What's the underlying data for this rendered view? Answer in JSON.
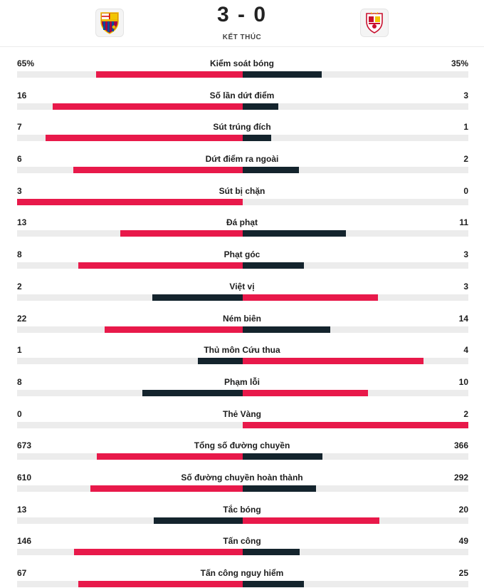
{
  "match": {
    "score": "3 - 0",
    "status": "KẾT THÚC",
    "home_crest": "fc-barcelona-crest",
    "away_crest": "sevilla-fc-crest"
  },
  "colors": {
    "leader": "#e8194a",
    "trailer": "#14242d",
    "track": "#ececec"
  },
  "stats": [
    {
      "label": "Kiểm soát bóng",
      "home": "65%",
      "away": "35%",
      "home_val": 65,
      "away_val": 35,
      "home_share": 0.65,
      "away_share": 0.35
    },
    {
      "label": "Số lần dứt điểm",
      "home": "16",
      "away": "3",
      "home_val": 16,
      "away_val": 3
    },
    {
      "label": "Sút trúng đích",
      "home": "7",
      "away": "1",
      "home_val": 7,
      "away_val": 1
    },
    {
      "label": "Dứt điểm ra ngoài",
      "home": "6",
      "away": "2",
      "home_val": 6,
      "away_val": 2
    },
    {
      "label": "Sút bị chặn",
      "home": "3",
      "away": "0",
      "home_val": 3,
      "away_val": 0
    },
    {
      "label": "Đá phạt",
      "home": "13",
      "away": "11",
      "home_val": 13,
      "away_val": 11
    },
    {
      "label": "Phạt góc",
      "home": "8",
      "away": "3",
      "home_val": 8,
      "away_val": 3
    },
    {
      "label": "Việt vị",
      "home": "2",
      "away": "3",
      "home_val": 2,
      "away_val": 3
    },
    {
      "label": "Ném biên",
      "home": "22",
      "away": "14",
      "home_val": 22,
      "away_val": 14
    },
    {
      "label": "Thủ môn Cứu thua",
      "home": "1",
      "away": "4",
      "home_val": 1,
      "away_val": 4
    },
    {
      "label": "Phạm lỗi",
      "home": "8",
      "away": "10",
      "home_val": 8,
      "away_val": 10
    },
    {
      "label": "Thẻ Vàng",
      "home": "0",
      "away": "2",
      "home_val": 0,
      "away_val": 2
    },
    {
      "label": "Tổng số đường chuyền",
      "home": "673",
      "away": "366",
      "home_val": 673,
      "away_val": 366
    },
    {
      "label": "Số đường chuyền hoàn thành",
      "home": "610",
      "away": "292",
      "home_val": 610,
      "away_val": 292
    },
    {
      "label": "Tắc bóng",
      "home": "13",
      "away": "20",
      "home_val": 13,
      "away_val": 20
    },
    {
      "label": "Tấn công",
      "home": "146",
      "away": "49",
      "home_val": 146,
      "away_val": 49
    },
    {
      "label": "Tấn công nguy hiểm",
      "home": "67",
      "away": "25",
      "home_val": 67,
      "away_val": 25
    }
  ]
}
